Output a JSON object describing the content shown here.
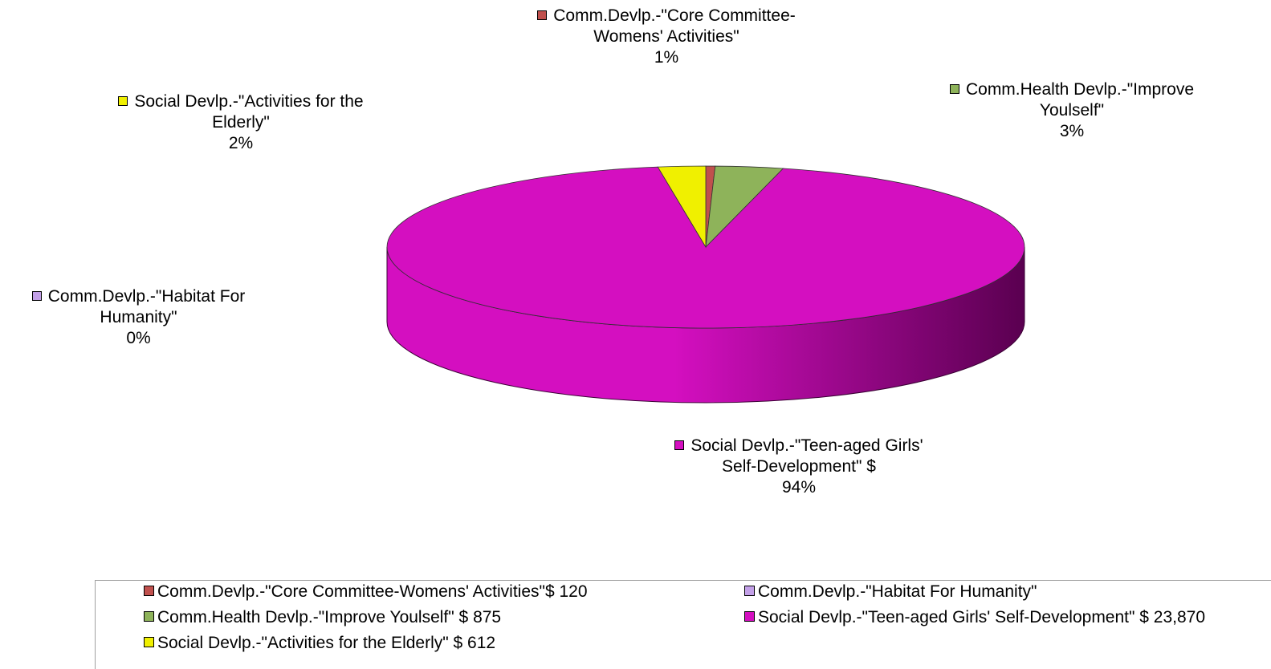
{
  "chart_data": {
    "type": "pie",
    "style": "3d",
    "slices": [
      {
        "key": "core_committee",
        "label": "Comm.Devlp.-\"Core Committee-Womens'  Activities\"",
        "pct_label": "1%",
        "legend": "Comm.Devlp.-\"Core Committee-Womens'  Activities\"$ 120",
        "value": 120,
        "color": "#c0504d"
      },
      {
        "key": "improve_yourself",
        "label": "Comm.Health Devlp.-\"Improve Youlself\"",
        "pct_label": "3%",
        "legend": "Comm.Health Devlp.-\"Improve Youlself\" $ 875",
        "value": 875,
        "color": "#8eb35a"
      },
      {
        "key": "teen_girls",
        "label": "Social Devlp.-\"Teen-aged Girls' Self-Development\" $",
        "pct_label": "94%",
        "legend": "Social Devlp.-\"Teen-aged Girls' Self-Development\" $ 23,870",
        "value": 23870,
        "color": "#d40fc0"
      },
      {
        "key": "habitat",
        "label": "Comm.Devlp.-\"Habitat For Humanity\"",
        "pct_label": "0%",
        "legend": "Comm.Devlp.-\"Habitat For Humanity\"",
        "value": 0,
        "color": "#c3a0e8"
      },
      {
        "key": "elderly",
        "label": "Social Devlp.-\"Activities for the Elderly\"",
        "pct_label": "2%",
        "legend": "Social Devlp.-\"Activities for the Elderly\" $ 612",
        "value": 612,
        "color": "#f0f000"
      }
    ],
    "label_lines": {
      "core_committee": [
        "Comm.Devlp.-\"Core Committee-",
        "Womens'  Activities\""
      ],
      "improve_yourself": [
        "Comm.Health Devlp.-\"Improve",
        "Youlself\""
      ],
      "teen_girls": [
        "Social Devlp.-\"Teen-aged Girls'",
        "Self-Development\" $"
      ],
      "habitat": [
        "Comm.Devlp.-\"Habitat For",
        "Humanity\""
      ],
      "elderly": [
        "Social Devlp.-\"Activities for the",
        "Elderly\""
      ]
    },
    "legend_position": "bottom",
    "side_color_dark": "#5a0050"
  }
}
